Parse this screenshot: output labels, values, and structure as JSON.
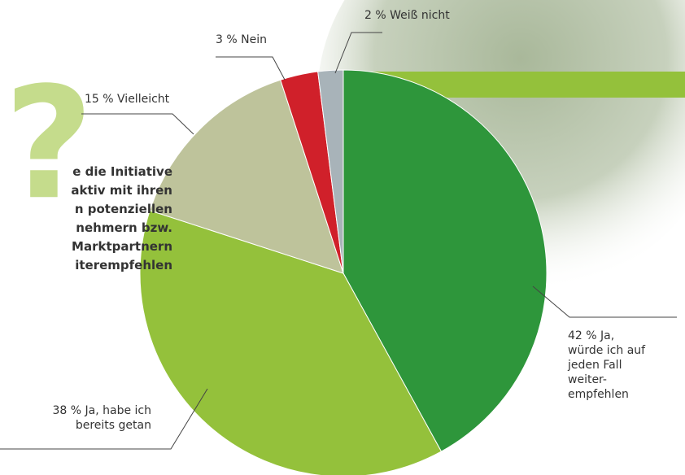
{
  "chart_data": {
    "type": "pie",
    "categories": [
      "Ja,\nwürde ich auf\njeden Fall\nweiter-\nempfehlen",
      "Ja, habe ich\nbereits getan",
      "Vielleicht",
      "Nein",
      "Weiß nicht"
    ],
    "values": [
      42,
      38,
      15,
      3,
      2
    ],
    "value_labels": [
      "42 %",
      "38 %",
      "15 %",
      "3 %",
      "2 %"
    ],
    "colors": [
      "#2e963b",
      "#94c13b",
      "#bec39b",
      "#d0202a",
      "#a8b3b9"
    ],
    "question": [
      "e die Initiative",
      "aktiv mit ihren",
      "n potenziellen",
      "nehmern bzw.",
      "Marktpartnern",
      "iterempfehlen"
    ]
  }
}
